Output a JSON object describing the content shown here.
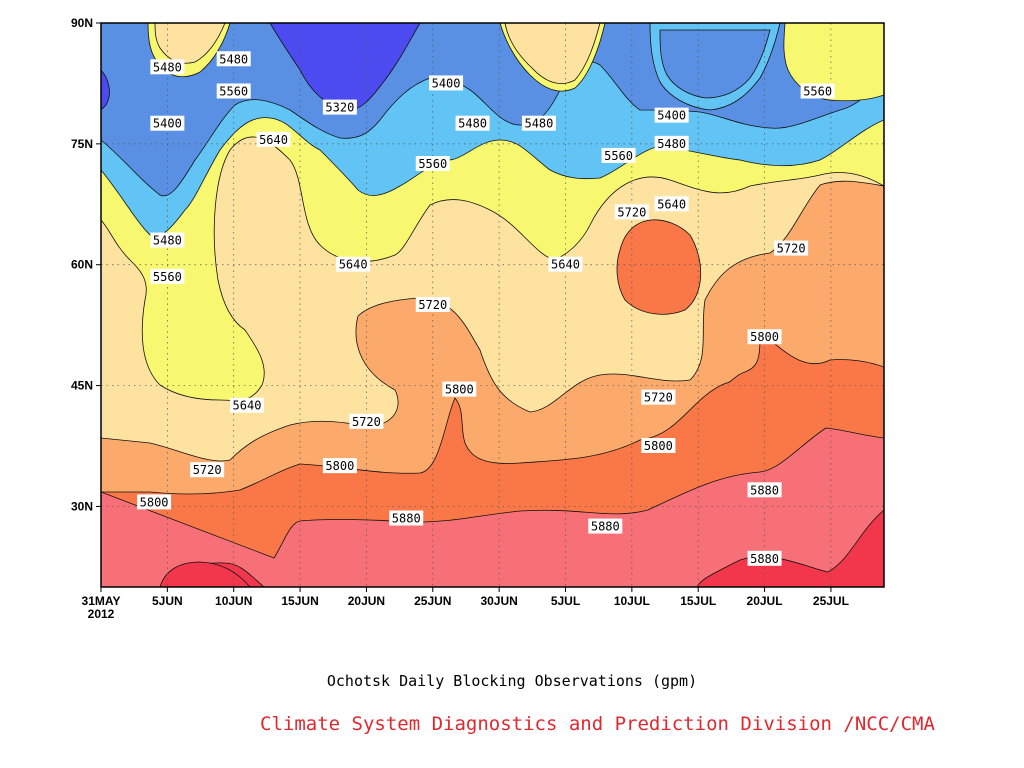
{
  "chart_data": {
    "type": "heatmap",
    "subtype": "filled-contour",
    "title": "Ochotsk Daily Blocking Observations (gpm)",
    "x_start_label": "31MAY",
    "x_year_label": "2012",
    "x_tick_labels": [
      "5JUN",
      "10JUN",
      "15JUN",
      "20JUN",
      "25JUN",
      "30JUN",
      "5JUL",
      "10JUL",
      "15JUL",
      "20JUL",
      "25JUL"
    ],
    "y_tick_labels": [
      "30N",
      "45N",
      "60N",
      "75N",
      "90N"
    ],
    "x_range": [
      "2012-05-31",
      "2012-07-29"
    ],
    "y_range_deg_north": [
      20,
      90
    ],
    "grid": "dotted",
    "contour_levels": [
      5320,
      5400,
      5480,
      5560,
      5640,
      5720,
      5800,
      5880
    ],
    "fill_colors": [
      "#4b4bf0",
      "#5a90e3",
      "#62c3f5",
      "#f8f870",
      "#fde2a0",
      "#fca96c",
      "#fa7848",
      "#f77078",
      "#f2364b"
    ],
    "contour_labels": [
      {
        "value": "5480",
        "date": "2012-06-05",
        "lat": 84.5
      },
      {
        "value": "5400",
        "date": "2012-06-05",
        "lat": 77.5
      },
      {
        "value": "5480",
        "date": "2012-06-10",
        "lat": 85.5
      },
      {
        "value": "5560",
        "date": "2012-06-10",
        "lat": 81.5
      },
      {
        "value": "5640",
        "date": "2012-06-13",
        "lat": 75.5
      },
      {
        "value": "5320",
        "date": "2012-06-18",
        "lat": 79.5
      },
      {
        "value": "5400",
        "date": "2012-06-26",
        "lat": 82.5
      },
      {
        "value": "5480",
        "date": "2012-06-28",
        "lat": 77.5
      },
      {
        "value": "5560",
        "date": "2012-06-25",
        "lat": 72.5
      },
      {
        "value": "5480",
        "date": "2012-07-03",
        "lat": 77.5
      },
      {
        "value": "5560",
        "date": "2012-07-09",
        "lat": 73.5
      },
      {
        "value": "5400",
        "date": "2012-07-13",
        "lat": 78.5
      },
      {
        "value": "5480",
        "date": "2012-07-13",
        "lat": 75.0
      },
      {
        "value": "5640",
        "date": "2012-07-13",
        "lat": 67.5
      },
      {
        "value": "5560",
        "date": "2012-07-24",
        "lat": 81.5
      },
      {
        "value": "5720",
        "date": "2012-07-10",
        "lat": 66.5
      },
      {
        "value": "5720",
        "date": "2012-07-22",
        "lat": 62.0
      },
      {
        "value": "5480",
        "date": "2012-06-05",
        "lat": 63.0
      },
      {
        "value": "5560",
        "date": "2012-06-05",
        "lat": 58.5
      },
      {
        "value": "5640",
        "date": "2012-06-19",
        "lat": 60.0
      },
      {
        "value": "5640",
        "date": "2012-07-05",
        "lat": 60.0
      },
      {
        "value": "5720",
        "date": "2012-06-25",
        "lat": 55.0
      },
      {
        "value": "5640",
        "date": "2012-06-11",
        "lat": 42.5
      },
      {
        "value": "5720",
        "date": "2012-06-20",
        "lat": 40.5
      },
      {
        "value": "5800",
        "date": "2012-06-27",
        "lat": 44.5
      },
      {
        "value": "5720",
        "date": "2012-07-12",
        "lat": 43.5
      },
      {
        "value": "5800",
        "date": "2012-07-20",
        "lat": 51.0
      },
      {
        "value": "5800",
        "date": "2012-07-12",
        "lat": 37.5
      },
      {
        "value": "5720",
        "date": "2012-06-08",
        "lat": 34.5
      },
      {
        "value": "5800",
        "date": "2012-06-18",
        "lat": 35.0
      },
      {
        "value": "5800",
        "date": "2012-06-04",
        "lat": 30.5
      },
      {
        "value": "5880",
        "date": "2012-06-23",
        "lat": 28.5
      },
      {
        "value": "5880",
        "date": "2012-07-08",
        "lat": 27.5
      },
      {
        "value": "5880",
        "date": "2012-07-20",
        "lat": 32.0
      },
      {
        "value": "5880",
        "date": "2012-07-20",
        "lat": 23.5
      }
    ]
  },
  "footer": {
    "caption": "Ochotsk Daily Blocking Observations (gpm)",
    "credit": "Climate System Diagnostics and Prediction Division /NCC/CMA",
    "credit_color": "#e0282f"
  }
}
